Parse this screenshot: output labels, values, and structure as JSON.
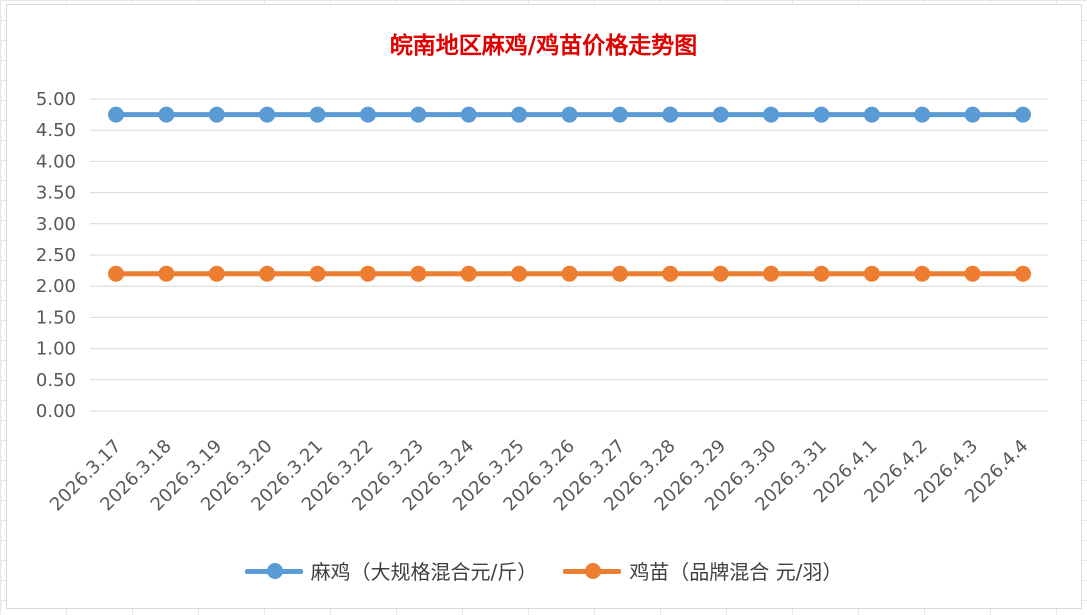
{
  "chart_data": {
    "type": "line",
    "title": "皖南地区麻鸡/鸡苗价格走势图",
    "title_color": "#e00000",
    "categories": [
      "2026.3.17",
      "2026.3.18",
      "2026.3.19",
      "2026.3.20",
      "2026.3.21",
      "2026.3.22",
      "2026.3.23",
      "2026.3.24",
      "2026.3.25",
      "2026.3.26",
      "2026.3.27",
      "2026.3.28",
      "2026.3.29",
      "2026.3.30",
      "2026.3.31",
      "2026.4.1",
      "2026.4.2",
      "2026.4.3",
      "2026.4.4"
    ],
    "y_ticks": [
      "5.00",
      "4.50",
      "4.00",
      "3.50",
      "3.00",
      "2.50",
      "2.00",
      "1.50",
      "1.00",
      "0.50",
      "0.00"
    ],
    "ylim": [
      0,
      5
    ],
    "grid": true,
    "legend_position": "bottom",
    "series": [
      {
        "name": "麻鸡（大规格混合元/斤）",
        "color": "#5b9bd5",
        "values": [
          4.75,
          4.75,
          4.75,
          4.75,
          4.75,
          4.75,
          4.75,
          4.75,
          4.75,
          4.75,
          4.75,
          4.75,
          4.75,
          4.75,
          4.75,
          4.75,
          4.75,
          4.75,
          4.75
        ]
      },
      {
        "name": "鸡苗（品牌混合 元/羽）",
        "color": "#ed7d31",
        "values": [
          2.2,
          2.2,
          2.2,
          2.2,
          2.2,
          2.2,
          2.2,
          2.2,
          2.2,
          2.2,
          2.2,
          2.2,
          2.2,
          2.2,
          2.2,
          2.2,
          2.2,
          2.2,
          2.2
        ]
      }
    ]
  }
}
